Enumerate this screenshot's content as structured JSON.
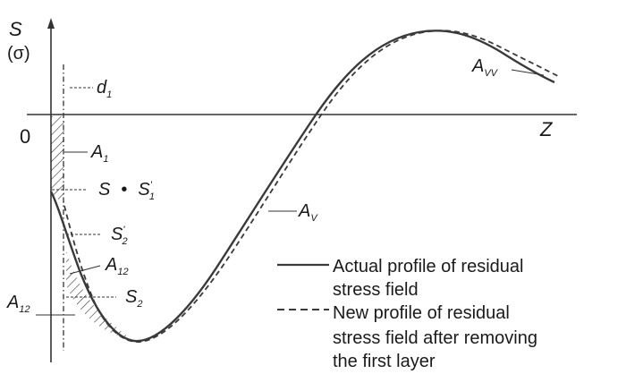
{
  "axes": {
    "y_label_main": "S",
    "y_label_paren": "(σ)",
    "origin_label": "0",
    "x_label": "Z"
  },
  "labels": {
    "d1": {
      "base": "d",
      "sub": "1"
    },
    "a1": {
      "base": "A",
      "sub": "1"
    },
    "s_eq": {
      "left": "S",
      "mid": "•",
      "base": "S",
      "sub": "1",
      "prime": "'"
    },
    "s2p": {
      "base": "S",
      "sub": "2",
      "prime": "'"
    },
    "a12_right": {
      "base": "A",
      "sub": "12"
    },
    "s2": {
      "base": "S",
      "sub": "2"
    },
    "a12_left": {
      "base": "A",
      "sub": "12"
    },
    "av": {
      "base": "A",
      "sub": "V"
    },
    "avv": {
      "base": "A",
      "sub": "VV"
    }
  },
  "legend": {
    "actual_line1": "Actual profile of residual",
    "actual_line2": "stress field",
    "new_line1": "New profile of residual",
    "new_line2": "stress field after removing",
    "new_line3": "the first layer"
  },
  "colors": {
    "curve": "#3a3a3a",
    "axis": "#333333",
    "text": "#1a1a1a"
  }
}
